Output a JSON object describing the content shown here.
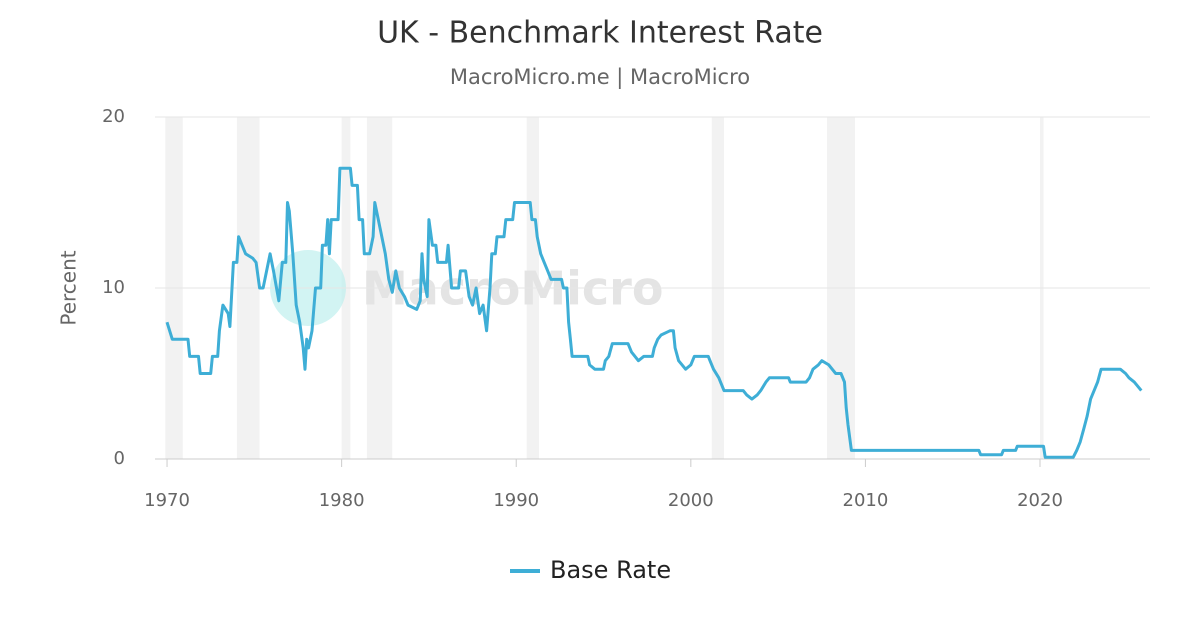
{
  "chart_data": {
    "type": "line",
    "title": "UK - Benchmark Interest Rate",
    "subtitle": "MacroMicro.me | MacroMicro",
    "watermark": "MacroMicro",
    "y_label": "Percent",
    "xlim": [
      1969.31,
      2026.3
    ],
    "xticks": [
      1970,
      1980,
      1990,
      2000,
      2010,
      2020
    ],
    "ylim": [
      0,
      20
    ],
    "yticks": [
      0,
      10,
      20
    ],
    "grid": true,
    "legend": "bottom",
    "recessions": [
      [
        1969.9,
        1970.9
      ],
      [
        1974.0,
        1975.3
      ],
      [
        1980.0,
        1980.5
      ],
      [
        1981.45,
        1982.9
      ],
      [
        1990.6,
        1991.3
      ],
      [
        2001.2,
        2001.9
      ],
      [
        2007.8,
        2009.4
      ],
      [
        2020.0,
        2020.2
      ]
    ],
    "recession_color": "#f2f2f2",
    "x": [
      1970,
      1970.3,
      1971.2,
      1971.3,
      1971.8,
      1971.9,
      1972.5,
      1972.6,
      1972.9,
      1973.0,
      1973.2,
      1973.5,
      1973.6,
      1973.8,
      1974.0,
      1974.1,
      1974.3,
      1974.5,
      1974.9,
      1975.1,
      1975.3,
      1975.5,
      1975.7,
      1975.9,
      1976.1,
      1976.4,
      1976.6,
      1976.8,
      1976.9,
      1977.0,
      1977.2,
      1977.4,
      1977.6,
      1977.8,
      1977.9,
      1978.0,
      1978.1,
      1978.3,
      1978.5,
      1978.8,
      1978.9,
      1979.1,
      1979.2,
      1979.3,
      1979.4,
      1979.8,
      1979.9,
      1980.5,
      1980.6,
      1980.9,
      1981.0,
      1981.2,
      1981.3,
      1981.6,
      1981.8,
      1981.9,
      1982.1,
      1982.3,
      1982.5,
      1982.7,
      1982.9,
      1983.1,
      1983.3,
      1983.6,
      1983.8,
      1984.3,
      1984.5,
      1984.6,
      1984.7,
      1984.9,
      1985.0,
      1985.2,
      1985.4,
      1985.5,
      1986.0,
      1986.1,
      1986.3,
      1986.7,
      1986.8,
      1987.1,
      1987.3,
      1987.5,
      1987.7,
      1987.9,
      1988.1,
      1988.3,
      1988.5,
      1988.6,
      1988.8,
      1988.9,
      1989.3,
      1989.4,
      1989.8,
      1989.9,
      1990.8,
      1990.9,
      1991.1,
      1991.2,
      1991.4,
      1991.6,
      1991.8,
      1992.0,
      1992.6,
      1992.7,
      1992.9,
      1993.0,
      1993.1,
      1993.2,
      1994.1,
      1994.2,
      1994.5,
      1995.0,
      1995.1,
      1995.3,
      1995.5,
      1996.4,
      1996.6,
      1996.8,
      1997.0,
      1997.3,
      1997.8,
      1997.9,
      1998.1,
      1998.3,
      1998.8,
      1999.0,
      1999.1,
      1999.3,
      1999.5,
      1999.7,
      2000.0,
      2000.2,
      2001.0,
      2001.1,
      2001.3,
      2001.6,
      2001.9,
      2003.0,
      2003.2,
      2003.5,
      2003.8,
      2004.0,
      2004.3,
      2004.5,
      2005.6,
      2005.7,
      2006.6,
      2006.8,
      2007.0,
      2007.3,
      2007.5,
      2007.9,
      2008.1,
      2008.3,
      2008.6,
      2008.8,
      2008.9,
      2009.0,
      2009.2,
      2016.5,
      2016.6,
      2017.8,
      2017.9,
      2018.6,
      2018.7,
      2020.2,
      2020.3,
      2021.9,
      2022.1,
      2022.3,
      2022.5,
      2022.7,
      2022.9,
      2023.1,
      2023.3,
      2023.5,
      2024.6,
      2024.9,
      2025.1,
      2025.4,
      2025.6,
      2025.8
    ],
    "series": [
      {
        "name": "Base Rate",
        "color": "#3eaed6",
        "values": [
          8,
          7,
          7,
          6,
          6,
          5,
          5,
          6,
          6,
          7.5,
          9,
          8.5,
          7.75,
          11.5,
          11.5,
          13,
          12.5,
          12,
          11.75,
          11.5,
          10,
          10,
          11,
          12,
          11,
          9.25,
          11.5,
          11.5,
          15,
          14.5,
          12,
          9,
          8,
          6.5,
          5.25,
          7,
          6.5,
          7.5,
          10,
          10,
          12.5,
          12.5,
          14,
          12,
          14,
          14,
          17,
          17,
          16,
          16,
          14,
          14,
          12,
          12,
          13,
          15,
          14,
          13,
          12,
          10.5,
          9.75,
          11,
          10,
          9.5,
          9,
          8.75,
          9.25,
          12,
          10.5,
          9.5,
          14,
          12.5,
          12.5,
          11.5,
          11.5,
          12.5,
          10,
          10,
          11,
          11,
          9.5,
          9,
          10,
          8.5,
          9,
          7.5,
          10,
          12,
          12,
          13,
          13,
          14,
          14,
          15,
          15,
          14,
          14,
          13,
          12,
          11.5,
          11,
          10.5,
          10.5,
          10,
          10,
          8,
          7,
          6,
          6,
          5.5,
          5.25,
          5.25,
          5.75,
          6,
          6.75,
          6.75,
          6.25,
          6,
          5.75,
          6,
          6,
          6.5,
          7,
          7.25,
          7.5,
          7.5,
          6.5,
          5.75,
          5.5,
          5.25,
          5.5,
          6,
          6,
          5.75,
          5.25,
          4.75,
          4,
          4,
          3.75,
          3.5,
          3.75,
          4,
          4.5,
          4.75,
          4.75,
          4.5,
          4.5,
          4.75,
          5.25,
          5.5,
          5.75,
          5.5,
          5.25,
          5,
          5,
          4.5,
          3,
          2,
          0.5,
          0.5,
          0.25,
          0.25,
          0.5,
          0.5,
          0.75,
          0.75,
          0.1,
          0.1,
          0.5,
          1,
          1.75,
          2.5,
          3.5,
          4,
          4.5,
          5.25,
          5.25,
          5,
          4.75,
          4.5,
          4.25,
          4
        ]
      }
    ]
  }
}
